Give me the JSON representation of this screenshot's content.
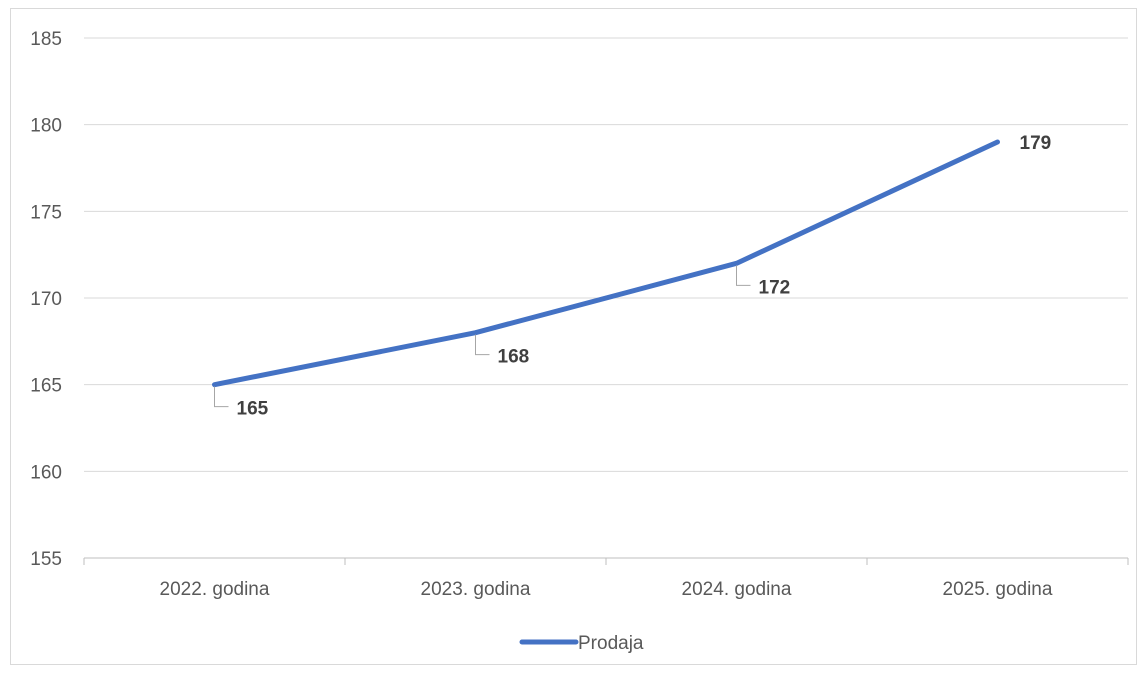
{
  "chart_data": {
    "type": "line",
    "categories": [
      "2022. godina",
      "2023. godina",
      "2024. godina",
      "2025. godina"
    ],
    "series": [
      {
        "name": "Prodaja",
        "values": [
          165,
          168,
          172,
          179
        ]
      }
    ],
    "title": "",
    "xlabel": "",
    "ylabel": "",
    "ylim": [
      155,
      185
    ],
    "yticks": [
      155,
      160,
      165,
      170,
      175,
      180,
      185
    ],
    "grid": true,
    "legend": "bottom",
    "data_labels": true,
    "colors": {
      "series": "#4472c4"
    }
  }
}
